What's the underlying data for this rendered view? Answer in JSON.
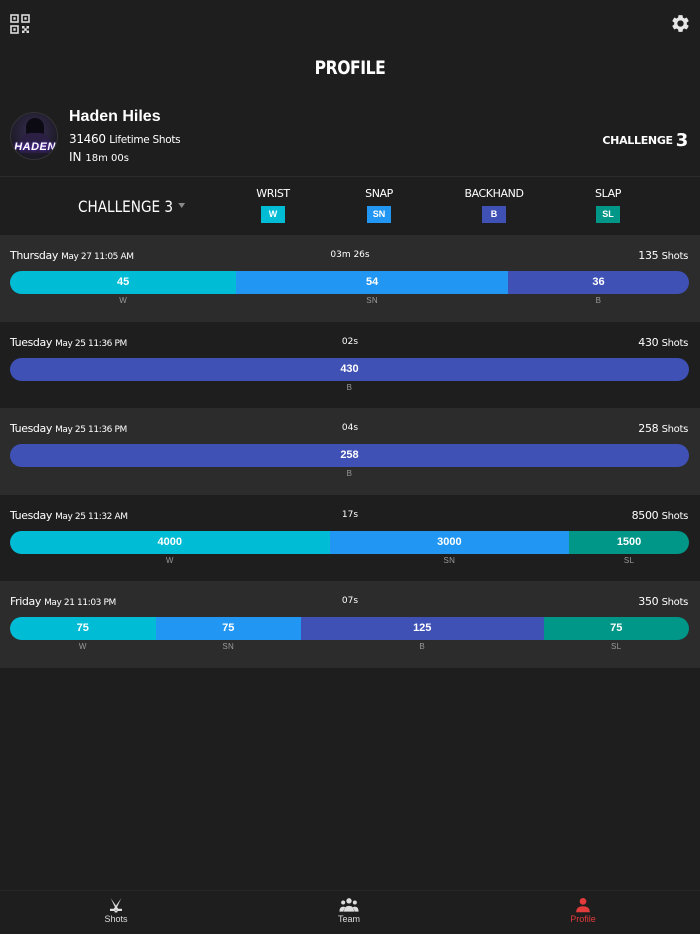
{
  "header": {
    "title": "PROFILE"
  },
  "player": {
    "name": "Haden Hiles",
    "avatar_text": "HADEN",
    "lifetime_count": "31460",
    "lifetime_label": "Lifetime Shots",
    "in_label": "IN",
    "duration": "18m 00s"
  },
  "challenge": {
    "label": "CHALLENGE",
    "number": "3",
    "selector": "CHALLENGE 3"
  },
  "legend": [
    {
      "name": "WRIST",
      "abbr": "W",
      "color": "#00bcd4"
    },
    {
      "name": "SNAP",
      "abbr": "SN",
      "color": "#2196f3"
    },
    {
      "name": "BACKHAND",
      "abbr": "B",
      "color": "#3f51b5"
    },
    {
      "name": "SLAP",
      "abbr": "SL",
      "color": "#009688"
    }
  ],
  "sessions": [
    {
      "day": "Thursday",
      "date": "May 27 11:05 AM",
      "duration": "03m 26s",
      "shots": "135",
      "shots_label": "Shots",
      "segments": [
        {
          "value": 45,
          "abbr": "W"
        },
        {
          "value": 54,
          "abbr": "SN"
        },
        {
          "value": 36,
          "abbr": "B"
        }
      ]
    },
    {
      "day": "Tuesday",
      "date": "May 25 11:36 PM",
      "duration": "02s",
      "shots": "430",
      "shots_label": "Shots",
      "segments": [
        {
          "value": 430,
          "abbr": "B"
        }
      ]
    },
    {
      "day": "Tuesday",
      "date": "May 25 11:36 PM",
      "duration": "04s",
      "shots": "258",
      "shots_label": "Shots",
      "segments": [
        {
          "value": 258,
          "abbr": "B"
        }
      ]
    },
    {
      "day": "Tuesday",
      "date": "May 25 11:32 AM",
      "duration": "17s",
      "shots": "8500",
      "shots_label": "Shots",
      "segments": [
        {
          "value": 4000,
          "abbr": "W"
        },
        {
          "value": 3000,
          "abbr": "SN"
        },
        {
          "value": 1500,
          "abbr": "SL"
        }
      ]
    },
    {
      "day": "Friday",
      "date": "May 21 11:03 PM",
      "duration": "07s",
      "shots": "350",
      "shots_label": "Shots",
      "segments": [
        {
          "value": 75,
          "abbr": "W"
        },
        {
          "value": 75,
          "abbr": "SN"
        },
        {
          "value": 125,
          "abbr": "B"
        },
        {
          "value": 75,
          "abbr": "SL"
        }
      ]
    }
  ],
  "nav": {
    "items": [
      {
        "label": "Shots",
        "icon": "hockey-sticks-icon"
      },
      {
        "label": "Team",
        "icon": "team-icon"
      },
      {
        "label": "Profile",
        "icon": "person-icon"
      }
    ],
    "active": "Profile",
    "active_color": "#e23b3b"
  }
}
